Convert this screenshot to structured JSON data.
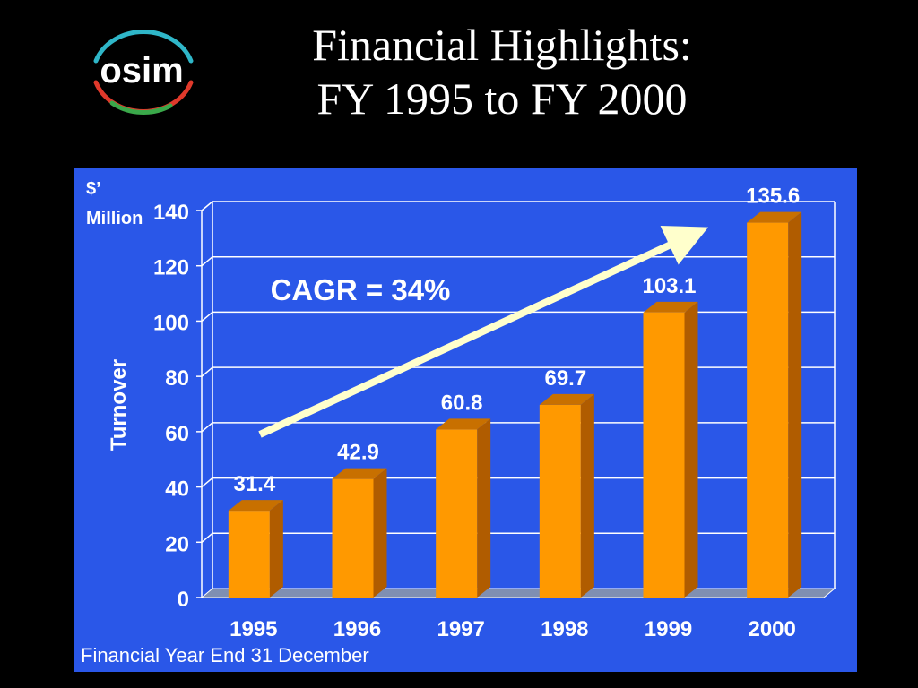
{
  "slide": {
    "title_line1": "Financial Highlights:",
    "title_line2": "FY 1995 to FY 2000",
    "logo_text": "osim"
  },
  "colors": {
    "background": "#000000",
    "panel": "#2a57e8",
    "bar_front": "#ff9900",
    "bar_side": "#b05c00",
    "bar_top": "#c87000",
    "arrow": "#ffffcc",
    "text": "#ffffff"
  },
  "chart_data": {
    "type": "bar",
    "categories": [
      "1995",
      "1996",
      "1997",
      "1998",
      "1999",
      "2000"
    ],
    "values": [
      31.4,
      42.9,
      60.8,
      69.7,
      103.1,
      135.6
    ],
    "value_labels": [
      "31.4",
      "42.9",
      "60.8",
      "69.7",
      "103.1",
      "135.6"
    ],
    "ylabel": "Turnover",
    "unit_label_line1": "$’",
    "unit_label_line2": "Million",
    "ylim": [
      0,
      140
    ],
    "yticks": [
      0,
      20,
      40,
      60,
      80,
      100,
      120,
      140
    ],
    "grid": true,
    "annotation": "CAGR = 34%",
    "footnote": "Financial Year End 31 December"
  }
}
